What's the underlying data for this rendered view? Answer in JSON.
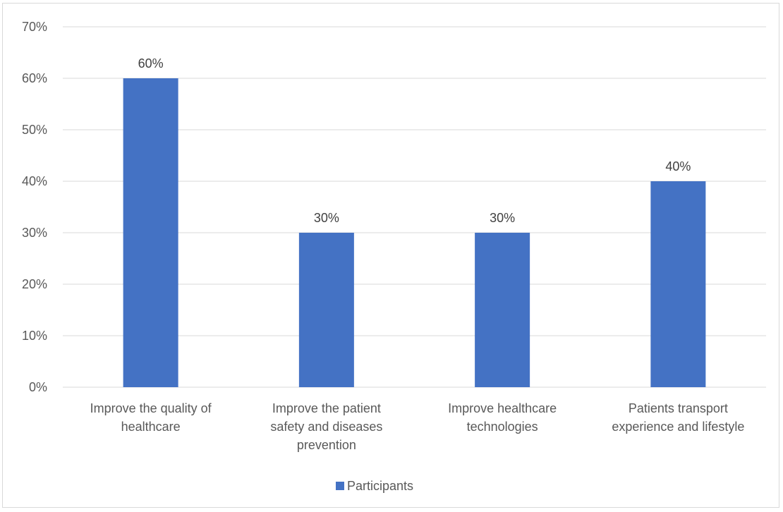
{
  "chart_data": {
    "type": "bar",
    "categories": [
      [
        "Improve the quality of",
        "healthcare"
      ],
      [
        "Improve the patient",
        "safety and diseases",
        "prevention"
      ],
      [
        "Improve healthcare",
        "technologies"
      ],
      [
        "Patients transport",
        "experience and lifestyle"
      ]
    ],
    "series": [
      {
        "name": "Participants",
        "values": [
          0.6,
          0.3,
          0.3,
          0.4
        ],
        "labels": [
          "60%",
          "30%",
          "30%",
          "40%"
        ],
        "color": "#4472c4"
      }
    ],
    "ylim": [
      0,
      0.7
    ],
    "yticks": [
      {
        "value": 0.0,
        "label": "0%"
      },
      {
        "value": 0.1,
        "label": "10%"
      },
      {
        "value": 0.2,
        "label": "20%"
      },
      {
        "value": 0.3,
        "label": "30%"
      },
      {
        "value": 0.4,
        "label": "40%"
      },
      {
        "value": 0.5,
        "label": "50%"
      },
      {
        "value": 0.6,
        "label": "60%"
      },
      {
        "value": 0.7,
        "label": "70%"
      }
    ],
    "grid": true,
    "gridColor": "#d9d9d9",
    "legend": "bottom-center"
  }
}
